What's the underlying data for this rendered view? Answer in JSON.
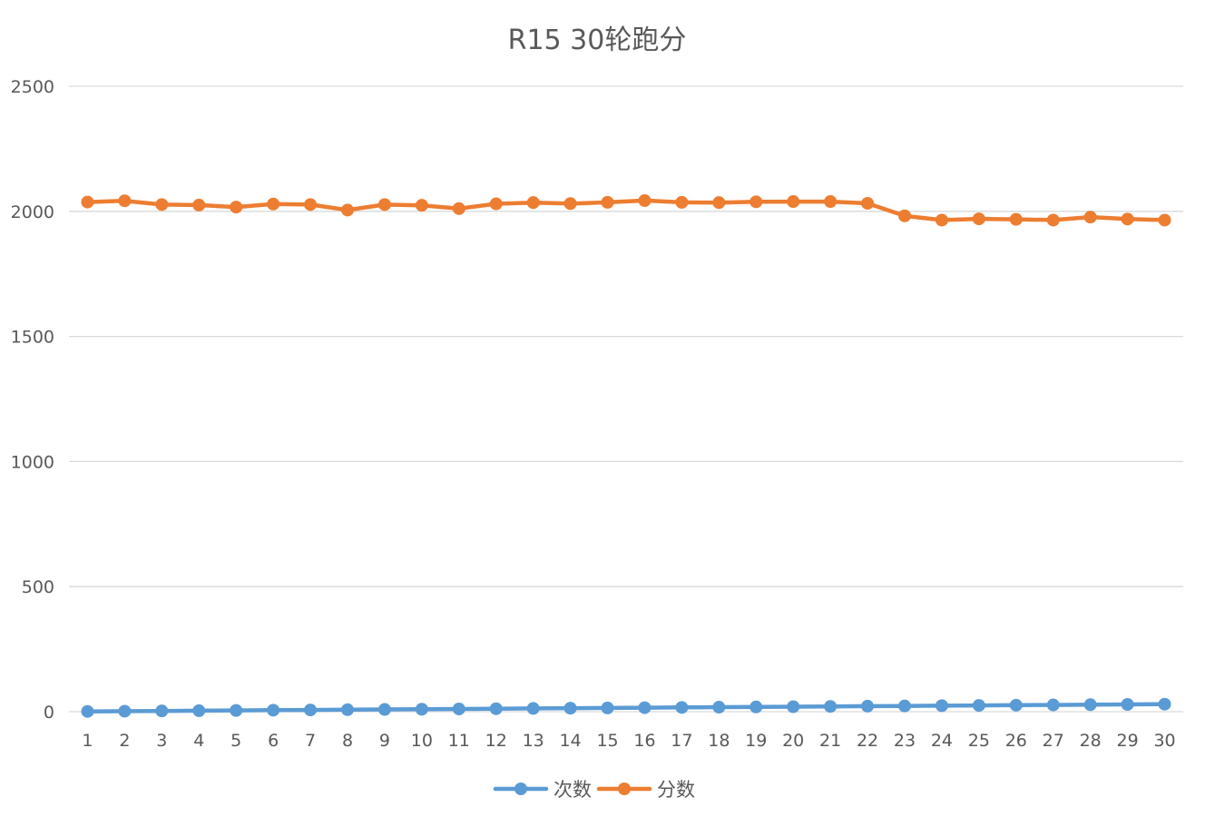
{
  "chart_data": {
    "type": "line",
    "title": "R15 30轮跑分",
    "xlabel": "",
    "ylabel": "",
    "ylim": [
      0,
      2500
    ],
    "y_ticks": [
      0,
      500,
      1000,
      1500,
      2000,
      2500
    ],
    "grid": true,
    "legend_position": "bottom",
    "categories": [
      "1",
      "2",
      "3",
      "4",
      "5",
      "6",
      "7",
      "8",
      "9",
      "10",
      "11",
      "12",
      "13",
      "14",
      "15",
      "16",
      "17",
      "18",
      "19",
      "20",
      "21",
      "22",
      "23",
      "24",
      "25",
      "26",
      "27",
      "28",
      "29",
      "30"
    ],
    "series": [
      {
        "name": "次数",
        "color": "#5b9bd5",
        "values": [
          1,
          2,
          3,
          4,
          5,
          6,
          7,
          8,
          9,
          10,
          11,
          12,
          13,
          14,
          15,
          16,
          17,
          18,
          19,
          20,
          21,
          22,
          23,
          24,
          25,
          26,
          27,
          28,
          29,
          30
        ]
      },
      {
        "name": "分数",
        "color": "#ed7d31",
        "values": [
          2037,
          2042,
          2027,
          2025,
          2017,
          2029,
          2027,
          2005,
          2027,
          2024,
          2011,
          2030,
          2035,
          2031,
          2036,
          2043,
          2036,
          2035,
          2038,
          2039,
          2039,
          2032,
          1982,
          1965,
          1970,
          1968,
          1965,
          1977,
          1969,
          1965
        ]
      }
    ]
  }
}
